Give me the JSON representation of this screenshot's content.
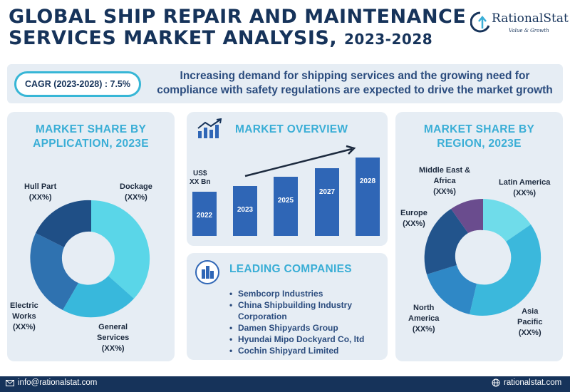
{
  "header": {
    "title_line1": "GLOBAL SHIP REPAIR AND MAINTENANCE",
    "title_line2": "SERVICES MARKET ANALYSIS,",
    "title_years": "2023-2028",
    "logo_name": "RationalStat",
    "logo_tagline": "Value & Growth"
  },
  "banner": {
    "cagr": "CAGR (2023-2028) : 7.5%",
    "line1": "Increasing demand for shipping services and the growing need for",
    "line2": "compliance with safety regulations are expected to drive the market growth"
  },
  "application_share": {
    "title_line1": "MARKET SHARE BY",
    "title_line2": "APPLICATION, 2023E",
    "labels": {
      "hull_part": {
        "name": "Hull Part",
        "value": "(XX%)"
      },
      "dockage": {
        "name": "Dockage",
        "value": "(XX%)"
      },
      "electric_works": {
        "line1": "Electric",
        "line2": "Works",
        "value": "(XX%)"
      },
      "general_services": {
        "line1": "General",
        "line2": "Services",
        "value": "(XX%)"
      }
    }
  },
  "market_overview": {
    "title": "MARKET OVERVIEW",
    "unit_line1": "US$",
    "unit_line2": "XX Bn",
    "years": [
      "2022",
      "2023",
      "2025",
      "2027",
      "2028"
    ]
  },
  "leading_companies": {
    "title": "LEADING COMPANIES",
    "items": [
      "Sembcorp Industries",
      "China Shipbuilding Industry",
      "Corporation",
      "Damen Shipyards Group",
      "Hyundai Mipo Dockyard Co, ltd",
      "Cochin Shipyard Limited"
    ]
  },
  "region_share": {
    "title_line1": "MARKET SHARE BY",
    "title_line2": "REGION, 2023E",
    "labels": {
      "middle_east": {
        "line1": "Middle East &",
        "line2": "Africa",
        "value": "(XX%)"
      },
      "latin_america": {
        "name": "Latin America",
        "value": "(XX%)"
      },
      "europe": {
        "name": "Europe",
        "value": "(XX%)"
      },
      "north_america": {
        "line1": "North",
        "line2": "America",
        "value": "(XX%)"
      },
      "asia_pacific": {
        "line1": "Asia",
        "line2": "Pacific",
        "value": "(XX%)"
      }
    }
  },
  "footer": {
    "email": "info@rationalstat.com",
    "website": "rationalstat.com"
  },
  "colors": {
    "navy": "#16335a",
    "accent": "#3aaed6",
    "panel": "#e6edf4",
    "bar": "#2f66b6"
  }
}
